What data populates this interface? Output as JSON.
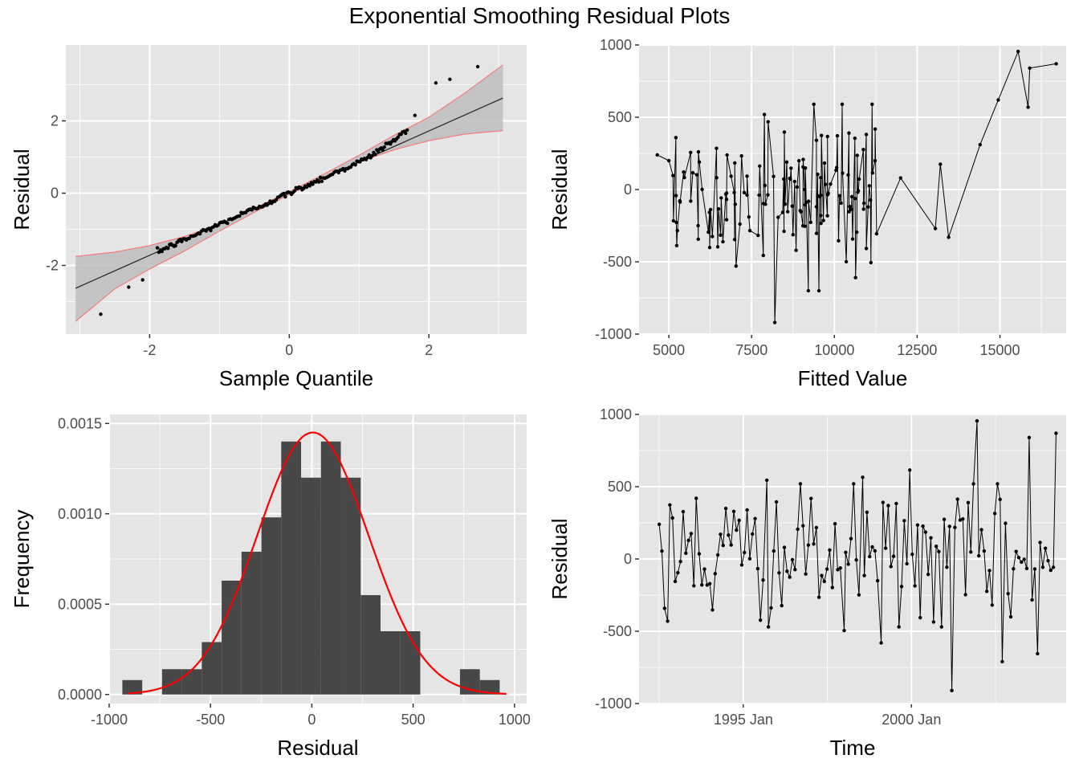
{
  "title": "Exponential Smoothing Residual Plots",
  "colors": {
    "panel_bg": "#e5e5e5",
    "grid": "#ffffff",
    "points": "#000000",
    "bars": "#474747",
    "normal_curve": "#ff0000",
    "band_fill": "#bdbdbd",
    "band_edge": "#ff6b6b",
    "text": "#4d4d4d"
  },
  "chart_data": [
    {
      "type": "scatter",
      "xlabel": "Sample Quantile",
      "ylabel": "Residual",
      "xlim": [
        -3.2,
        3.4
      ],
      "ylim": [
        -3.9,
        4.1
      ],
      "x_ticks": [
        -2,
        0,
        2
      ],
      "x_tick_labels": [
        "-2",
        "0",
        "2"
      ],
      "y_ticks": [
        -2,
        0,
        2
      ],
      "y_tick_labels": [
        "-2",
        "0",
        "2"
      ],
      "n_points": 172,
      "reference_line": {
        "intercept": 0.0,
        "slope": 0.86
      },
      "confidence_band": {
        "x": [
          -3.06,
          -2.5,
          -2.0,
          -1.5,
          -1.0,
          -0.5,
          0.0,
          0.5,
          1.0,
          1.5,
          2.0,
          2.5,
          3.06
        ],
        "lower": [
          -3.55,
          -2.65,
          -2.1,
          -1.6,
          -1.05,
          -0.53,
          -0.04,
          0.42,
          0.86,
          1.2,
          1.45,
          1.63,
          1.73
        ],
        "upper": [
          -1.75,
          -1.63,
          -1.45,
          -1.2,
          -0.86,
          -0.42,
          0.04,
          0.53,
          1.05,
          1.6,
          2.1,
          2.75,
          3.55
        ]
      },
      "outlier_points": [
        {
          "x": -2.7,
          "y": -3.35
        },
        {
          "x": -2.3,
          "y": -2.6
        },
        {
          "x": -2.1,
          "y": -2.4
        },
        {
          "x": 1.8,
          "y": 2.15
        },
        {
          "x": 2.1,
          "y": 3.05
        },
        {
          "x": 2.3,
          "y": 3.15
        },
        {
          "x": 2.7,
          "y": 3.5
        }
      ]
    },
    {
      "type": "line",
      "xlabel": "Fitted Value",
      "ylabel": "Residual",
      "xlim": [
        4100,
        17000
      ],
      "ylim": [
        -1000,
        1000
      ],
      "x_ticks": [
        5000,
        7500,
        10000,
        12500,
        15000
      ],
      "x_tick_labels": [
        "5000",
        "7500",
        "10000",
        "12500",
        "15000"
      ],
      "y_ticks": [
        -1000,
        -500,
        0,
        500,
        1000
      ],
      "y_tick_labels": [
        "-1000",
        "-500",
        "0",
        "500",
        "1000"
      ],
      "key_points": [
        {
          "x": 4650,
          "y": 240
        },
        {
          "x": 5000,
          "y": 200
        },
        {
          "x": 8200,
          "y": -920
        },
        {
          "x": 12000,
          "y": 80
        },
        {
          "x": 13050,
          "y": -270
        },
        {
          "x": 13200,
          "y": 175
        },
        {
          "x": 13450,
          "y": -330
        },
        {
          "x": 14400,
          "y": 310
        },
        {
          "x": 14950,
          "y": 620
        },
        {
          "x": 15550,
          "y": 955
        },
        {
          "x": 15850,
          "y": 570
        },
        {
          "x": 15900,
          "y": 840
        },
        {
          "x": 16700,
          "y": 870
        }
      ]
    },
    {
      "type": "bar",
      "xlabel": "Residual",
      "ylabel": "Frequency",
      "xlim": [
        -1000,
        1060
      ],
      "ylim": [
        -5e-05,
        0.00155
      ],
      "x_ticks": [
        -1000,
        -500,
        0,
        500,
        1000
      ],
      "x_tick_labels": [
        "-1000",
        "-500",
        "0",
        "500",
        "1000"
      ],
      "y_ticks": [
        0,
        0.0005,
        0.001,
        0.0015
      ],
      "y_tick_labels": [
        "0.0000",
        "0.0005",
        "0.0010",
        "0.0015"
      ],
      "bin_edges": [
        -935,
        -837,
        -739,
        -641,
        -543,
        -445,
        -347,
        -249,
        -151,
        -53,
        45,
        143,
        241,
        339,
        437,
        535,
        633,
        731,
        829,
        927,
        1025
      ],
      "values": [
        8e-05,
        0.0,
        0.00014,
        0.00014,
        0.00029,
        0.00063,
        0.00079,
        0.00098,
        0.0014,
        0.0012,
        0.0014,
        0.0012,
        0.00055,
        0.00035,
        0.00035,
        0.0,
        0.0,
        0.00014,
        8e-05,
        0.0
      ],
      "normal_curve": {
        "mean": 5,
        "sd": 275,
        "peak": 0.00145
      }
    },
    {
      "type": "line",
      "xlabel": "Time",
      "ylabel": "Residual",
      "xlim": [
        1991.9,
        2004.6
      ],
      "ylim": [
        -1000,
        1000
      ],
      "x_ticks": [
        1995.0,
        2000.0
      ],
      "x_tick_labels": [
        "1995 Jan",
        "2000 Jan"
      ],
      "y_ticks": [
        -1000,
        -500,
        0,
        500,
        1000
      ],
      "y_tick_labels": [
        "-1000",
        "-500",
        "0",
        "500",
        "1000"
      ],
      "key_points": [
        {
          "x": 1992.5,
          "y": 240
        },
        {
          "x": 1992.75,
          "y": -430
        },
        {
          "x": 1993.6,
          "y": 420
        },
        {
          "x": 1995.7,
          "y": 545
        },
        {
          "x": 1998.0,
          "y": -495
        },
        {
          "x": 1998.55,
          "y": 565
        },
        {
          "x": 1999.1,
          "y": -580
        },
        {
          "x": 1999.95,
          "y": 615
        },
        {
          "x": 2001.2,
          "y": -910
        },
        {
          "x": 2001.95,
          "y": 955
        },
        {
          "x": 2002.7,
          "y": -710
        },
        {
          "x": 2003.5,
          "y": 840
        },
        {
          "x": 2003.75,
          "y": -655
        },
        {
          "x": 2004.3,
          "y": 870
        }
      ]
    }
  ]
}
